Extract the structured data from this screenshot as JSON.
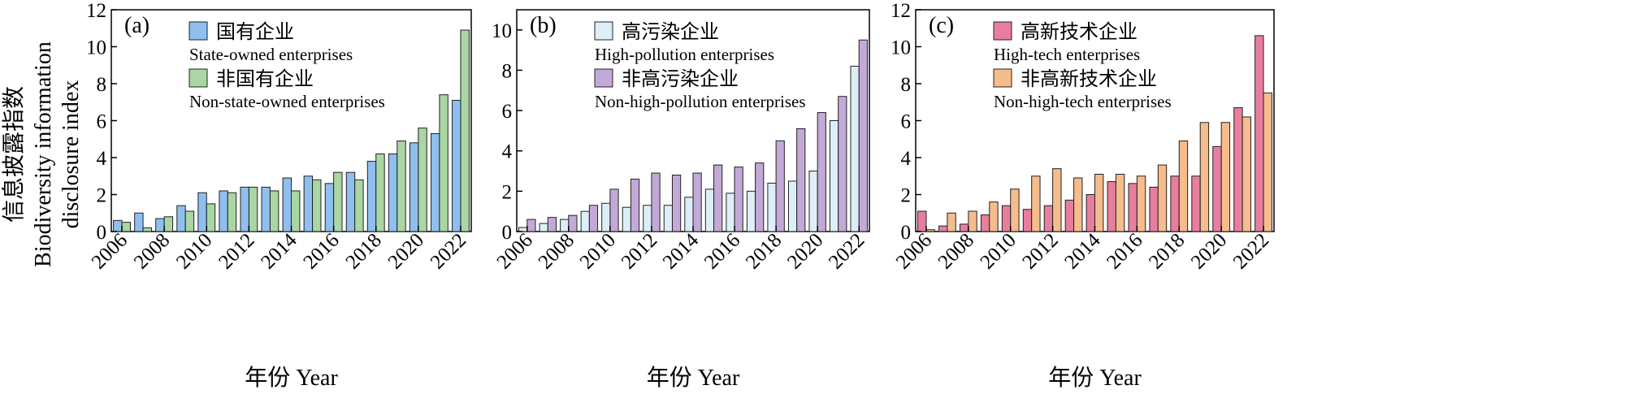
{
  "chart_data": [
    {
      "type": "bar",
      "panel_label": "(a)",
      "x": [
        2006,
        2007,
        2008,
        2009,
        2010,
        2011,
        2012,
        2013,
        2014,
        2015,
        2016,
        2017,
        2018,
        2019,
        2020,
        2021,
        2022
      ],
      "x_tick_labels": [
        "2006",
        "2008",
        "2010",
        "2012",
        "2014",
        "2016",
        "2018",
        "2020",
        "2022"
      ],
      "ylim": [
        0,
        12
      ],
      "y_ticks": [
        0,
        2,
        4,
        6,
        8,
        10,
        12
      ],
      "xlabel": "年份 Year",
      "legend_position": "top-left",
      "series": [
        {
          "name_cn": "国有企业",
          "name_en": "State-owned enterprises",
          "color": "#8FBFEF",
          "values": [
            0.6,
            1.0,
            0.7,
            1.4,
            2.1,
            2.2,
            2.4,
            2.4,
            2.9,
            3.0,
            2.6,
            3.2,
            3.8,
            4.2,
            4.8,
            5.3,
            7.1
          ]
        },
        {
          "name_cn": "非国有企业",
          "name_en": "Non-state-owned enterprises",
          "color": "#A9D6A2",
          "values": [
            0.5,
            0.2,
            0.8,
            1.1,
            1.5,
            2.1,
            2.4,
            2.2,
            2.2,
            2.8,
            3.2,
            2.8,
            4.2,
            4.9,
            5.6,
            7.4,
            10.9
          ]
        }
      ]
    },
    {
      "type": "bar",
      "panel_label": "(b)",
      "x": [
        2006,
        2007,
        2008,
        2009,
        2010,
        2011,
        2012,
        2013,
        2014,
        2015,
        2016,
        2017,
        2018,
        2019,
        2020,
        2021,
        2022
      ],
      "x_tick_labels": [
        "2006",
        "2008",
        "2010",
        "2012",
        "2014",
        "2016",
        "2018",
        "2020",
        "2022"
      ],
      "ylim": [
        0,
        11
      ],
      "y_ticks": [
        0,
        2,
        4,
        6,
        8,
        10
      ],
      "xlabel": "年份 Year",
      "legend_position": "top-left",
      "series": [
        {
          "name_cn": "高污染企业",
          "name_en": "High-pollution enterprises",
          "color": "#DDEEF8",
          "values": [
            0.2,
            0.4,
            0.6,
            1.0,
            1.4,
            1.2,
            1.3,
            1.3,
            1.7,
            2.1,
            1.9,
            2.0,
            2.4,
            2.5,
            3.0,
            5.5,
            8.2
          ]
        },
        {
          "name_cn": "非高污染企业",
          "name_en": "Non-high-pollution enterprises",
          "color": "#C3A9D7",
          "values": [
            0.6,
            0.7,
            0.8,
            1.3,
            2.1,
            2.6,
            2.9,
            2.8,
            2.9,
            3.3,
            3.2,
            3.4,
            4.5,
            5.1,
            5.9,
            6.7,
            9.5
          ]
        }
      ]
    },
    {
      "type": "bar",
      "panel_label": "(c)",
      "x": [
        2006,
        2007,
        2008,
        2009,
        2010,
        2011,
        2012,
        2013,
        2014,
        2015,
        2016,
        2017,
        2018,
        2019,
        2020,
        2021,
        2022
      ],
      "x_tick_labels": [
        "2006",
        "2008",
        "2010",
        "2012",
        "2014",
        "2016",
        "2018",
        "2020",
        "2022"
      ],
      "ylim": [
        0,
        12
      ],
      "y_ticks": [
        0,
        2,
        4,
        6,
        8,
        10,
        12
      ],
      "xlabel": "年份 Year",
      "legend_position": "top-left",
      "series": [
        {
          "name_cn": "高新技术企业",
          "name_en": "High-tech enterprises",
          "color": "#E77E9E",
          "values": [
            1.1,
            0.3,
            0.4,
            0.9,
            1.4,
            1.2,
            1.4,
            1.7,
            2.0,
            2.7,
            2.6,
            2.4,
            3.0,
            3.0,
            4.6,
            6.7,
            10.6
          ]
        },
        {
          "name_cn": "非高新技术企业",
          "name_en": "Non-high-tech enterprises",
          "color": "#F5BC8C",
          "values": [
            0.1,
            1.0,
            1.1,
            1.6,
            2.3,
            3.0,
            3.4,
            2.9,
            3.1,
            3.1,
            3.0,
            3.6,
            4.9,
            5.9,
            5.9,
            6.2,
            7.5
          ]
        }
      ]
    }
  ],
  "y_axis_title_cn": "信息披露指数",
  "y_axis_title_en": "Biodiversity information",
  "y_axis_title_en2": "disclosure index"
}
